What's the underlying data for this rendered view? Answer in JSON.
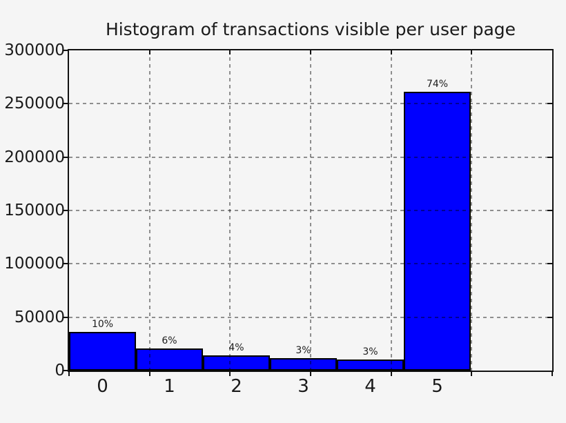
{
  "figure": {
    "background_color": "#f5f5f5",
    "text_color": "#1a1a1a"
  },
  "chart_data": {
    "type": "bar",
    "title": "Histogram of transactions visible per user page",
    "categories": [
      "0",
      "1",
      "2",
      "3",
      "4",
      "5"
    ],
    "values": [
      36000,
      21000,
      14500,
      11500,
      10500,
      261500
    ],
    "bar_labels": [
      "10%",
      "6%",
      "4%",
      "3%",
      "3%",
      "74%"
    ],
    "xlabel": "",
    "ylabel": "",
    "ylim": [
      0,
      300000
    ],
    "yticks": [
      0,
      50000,
      100000,
      150000,
      200000,
      250000,
      300000
    ],
    "ytick_labels": [
      "0",
      "50000",
      "100000",
      "150000",
      "200000",
      "250000",
      "300000"
    ],
    "grid": "dashed gridlines at ticks, drawn over bars",
    "legend_position": "none",
    "bar_color": "#0000ff",
    "bar_edge_color": "#000000"
  }
}
